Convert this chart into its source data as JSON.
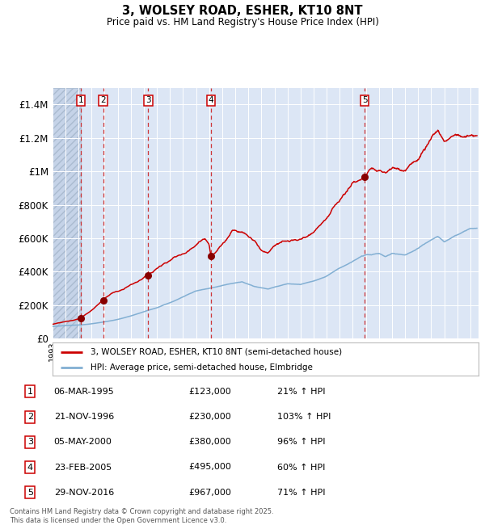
{
  "title": "3, WOLSEY ROAD, ESHER, KT10 8NT",
  "subtitle": "Price paid vs. HM Land Registry's House Price Index (HPI)",
  "background_color": "#dce6f5",
  "hatch_color": "#c5d3e8",
  "grid_color": "#ffffff",
  "red_line_color": "#cc0000",
  "blue_line_color": "#82afd3",
  "sale_marker_color": "#880000",
  "dashed_line_color": "#cc2222",
  "transactions": [
    {
      "num": 1,
      "date_str": "06-MAR-1995",
      "date_x": 1995.18,
      "price": 123000,
      "pct": "21%",
      "arrow": "↑"
    },
    {
      "num": 2,
      "date_str": "21-NOV-1996",
      "date_x": 1996.89,
      "price": 230000,
      "pct": "103%",
      "arrow": "↑"
    },
    {
      "num": 3,
      "date_str": "05-MAY-2000",
      "date_x": 2000.34,
      "price": 380000,
      "pct": "96%",
      "arrow": "↑"
    },
    {
      "num": 4,
      "date_str": "23-FEB-2005",
      "date_x": 2005.14,
      "price": 495000,
      "pct": "60%",
      "arrow": "↑"
    },
    {
      "num": 5,
      "date_str": "29-NOV-2016",
      "date_x": 2016.91,
      "price": 967000,
      "pct": "71%",
      "arrow": "↑"
    }
  ],
  "ylim": [
    0,
    1500000
  ],
  "yticks": [
    0,
    200000,
    400000,
    600000,
    800000,
    1000000,
    1200000,
    1400000
  ],
  "ytick_labels": [
    "£0",
    "£200K",
    "£400K",
    "£600K",
    "£800K",
    "£1M",
    "£1.2M",
    "£1.4M"
  ],
  "xlim_start": 1993.0,
  "xlim_end": 2025.6,
  "legend_line1": "3, WOLSEY ROAD, ESHER, KT10 8NT (semi-detached house)",
  "legend_line2": "HPI: Average price, semi-detached house, Elmbridge",
  "footer": "Contains HM Land Registry data © Crown copyright and database right 2025.\nThis data is licensed under the Open Government Licence v3.0.",
  "hatch_end_x": 1995.18
}
